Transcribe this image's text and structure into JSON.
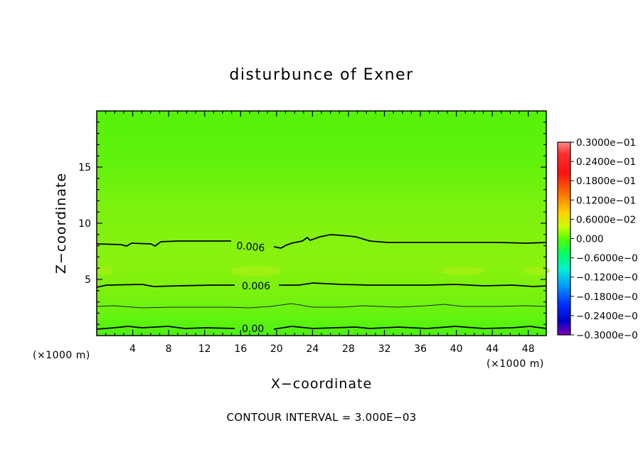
{
  "chart_data": {
    "type": "heatmap",
    "title": "disturbunce of Exner",
    "xlabel": "X−coordinate",
    "ylabel": "Z−coordinate",
    "x_unit": "(×1000 m)",
    "y_unit": "(×1000 m)",
    "xlim": [
      0,
      50
    ],
    "ylim": [
      0,
      20
    ],
    "x_ticks": [
      4,
      8,
      12,
      16,
      20,
      24,
      28,
      32,
      36,
      40,
      44,
      48
    ],
    "y_ticks": [
      5,
      10,
      15
    ],
    "colorbar": {
      "labels": [
        "0.3000e−01",
        "0.2400e−01",
        "0.1800e−01",
        "0.1200e−01",
        "0.6000e−02",
        "0.000",
        "−0.6000e−0",
        "−0.1200e−0",
        "−0.1800e−0",
        "−0.2400e−0",
        "−0.3000e−0"
      ],
      "colors": [
        "#ff8080",
        "#ff2020",
        "#ff5a00",
        "#ffaa00",
        "#d8ff00",
        "#5aff00",
        "#00ff70",
        "#00d8ff",
        "#0060ff",
        "#0000d8",
        "#8000c0"
      ]
    },
    "field_colors": {
      "low": "#55f20a",
      "mid": "#8af20f",
      "high": "#5cf510"
    },
    "contours": [
      {
        "label": "0.006",
        "z": 8.5
      },
      {
        "label": "0.006",
        "z": 4.6
      },
      {
        "label": "",
        "z": 2.7
      },
      {
        "label": "0.00",
        "z": 0.8
      }
    ],
    "contour_interval_text": "CONTOUR INTERVAL = 3.000E−03"
  }
}
